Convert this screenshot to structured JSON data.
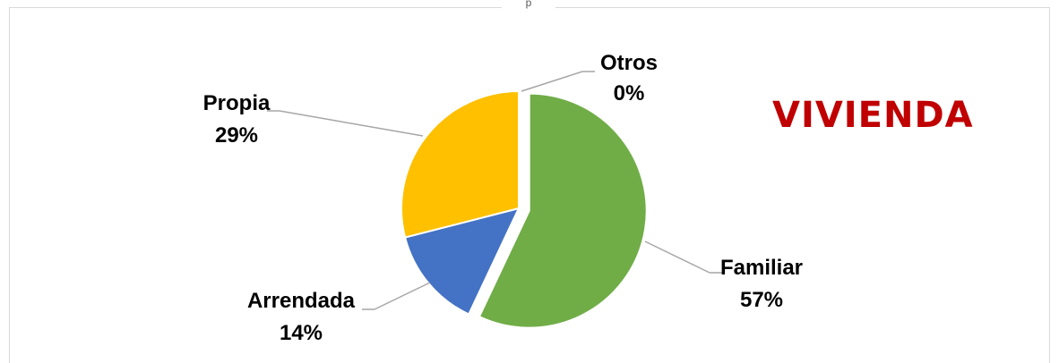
{
  "chart_data": {
    "type": "pie",
    "title": "VIVIENDA",
    "top_glyph": "p",
    "slices": [
      {
        "name": "Familiar",
        "value": 57,
        "label": "57%",
        "color": "#70ad47",
        "exploded": true
      },
      {
        "name": "Arrendada",
        "value": 14,
        "label": "14%",
        "color": "#4472c4",
        "exploded": false
      },
      {
        "name": "Propia",
        "value": 29,
        "label": "29%",
        "color": "#ffc000",
        "exploded": false
      },
      {
        "name": "Otros",
        "value": 0,
        "label": "0%",
        "color": "#a5a5a5",
        "exploded": false
      }
    ],
    "legend": "none",
    "data_labels": "outside-with-leader-lines"
  }
}
